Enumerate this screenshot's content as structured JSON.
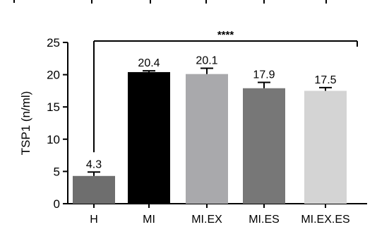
{
  "chart_data": {
    "type": "bar",
    "categories": [
      "H",
      "MI",
      "MI.EX",
      "MI.ES",
      "MI.EX.ES"
    ],
    "values": [
      4.3,
      20.4,
      20.1,
      17.9,
      17.5
    ],
    "error_upper": [
      4.9,
      20.6,
      21.0,
      18.8,
      18.0
    ],
    "data_labels": [
      "4.3",
      "20.4",
      "20.1",
      "17.9",
      "17.5"
    ],
    "bar_colors": [
      "#6e6e6e",
      "#000000",
      "#a9a9ac",
      "#777777",
      "#d4d4d4"
    ],
    "ylabel": "TSP1 (n/ml)",
    "ylim": [
      0,
      25
    ],
    "yticks": [
      0,
      5,
      10,
      15,
      20,
      25
    ],
    "grid": false,
    "significance": {
      "label": "****",
      "from_category": "H",
      "to_category": "MI.EX.ES"
    }
  }
}
